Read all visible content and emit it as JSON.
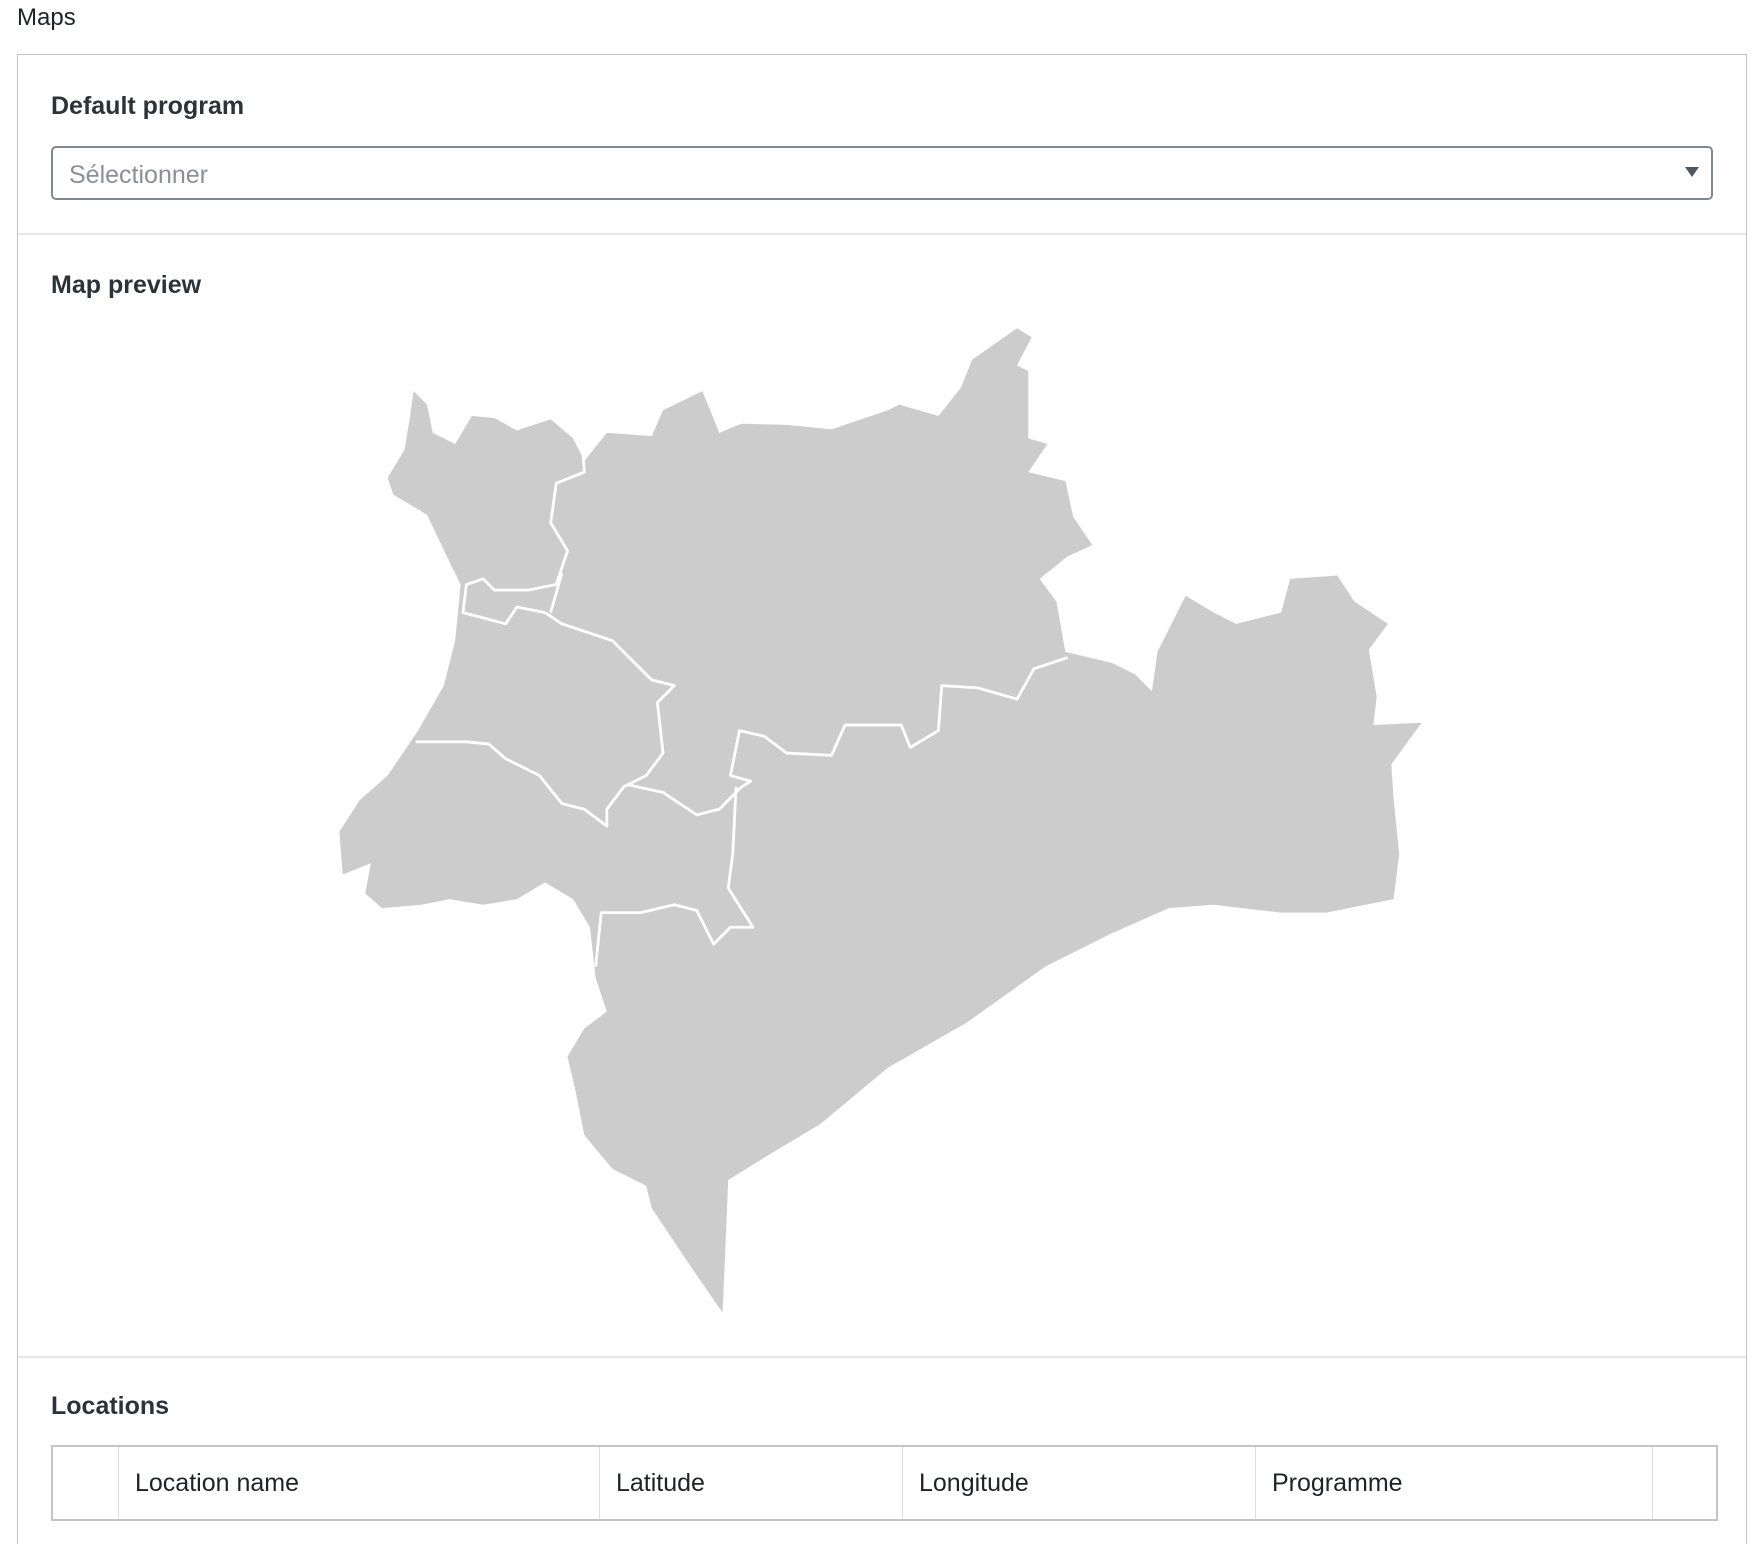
{
  "section_title": "Maps",
  "default_program": {
    "label": "Default program",
    "placeholder": "Sélectionner"
  },
  "map_preview": {
    "label": "Map preview",
    "fill_color": "#cccccc",
    "border_color": "#ffffff"
  },
  "locations": {
    "label": "Locations",
    "columns": [
      "",
      "Location name",
      "Latitude",
      "Longitude",
      "Programme",
      ""
    ]
  }
}
